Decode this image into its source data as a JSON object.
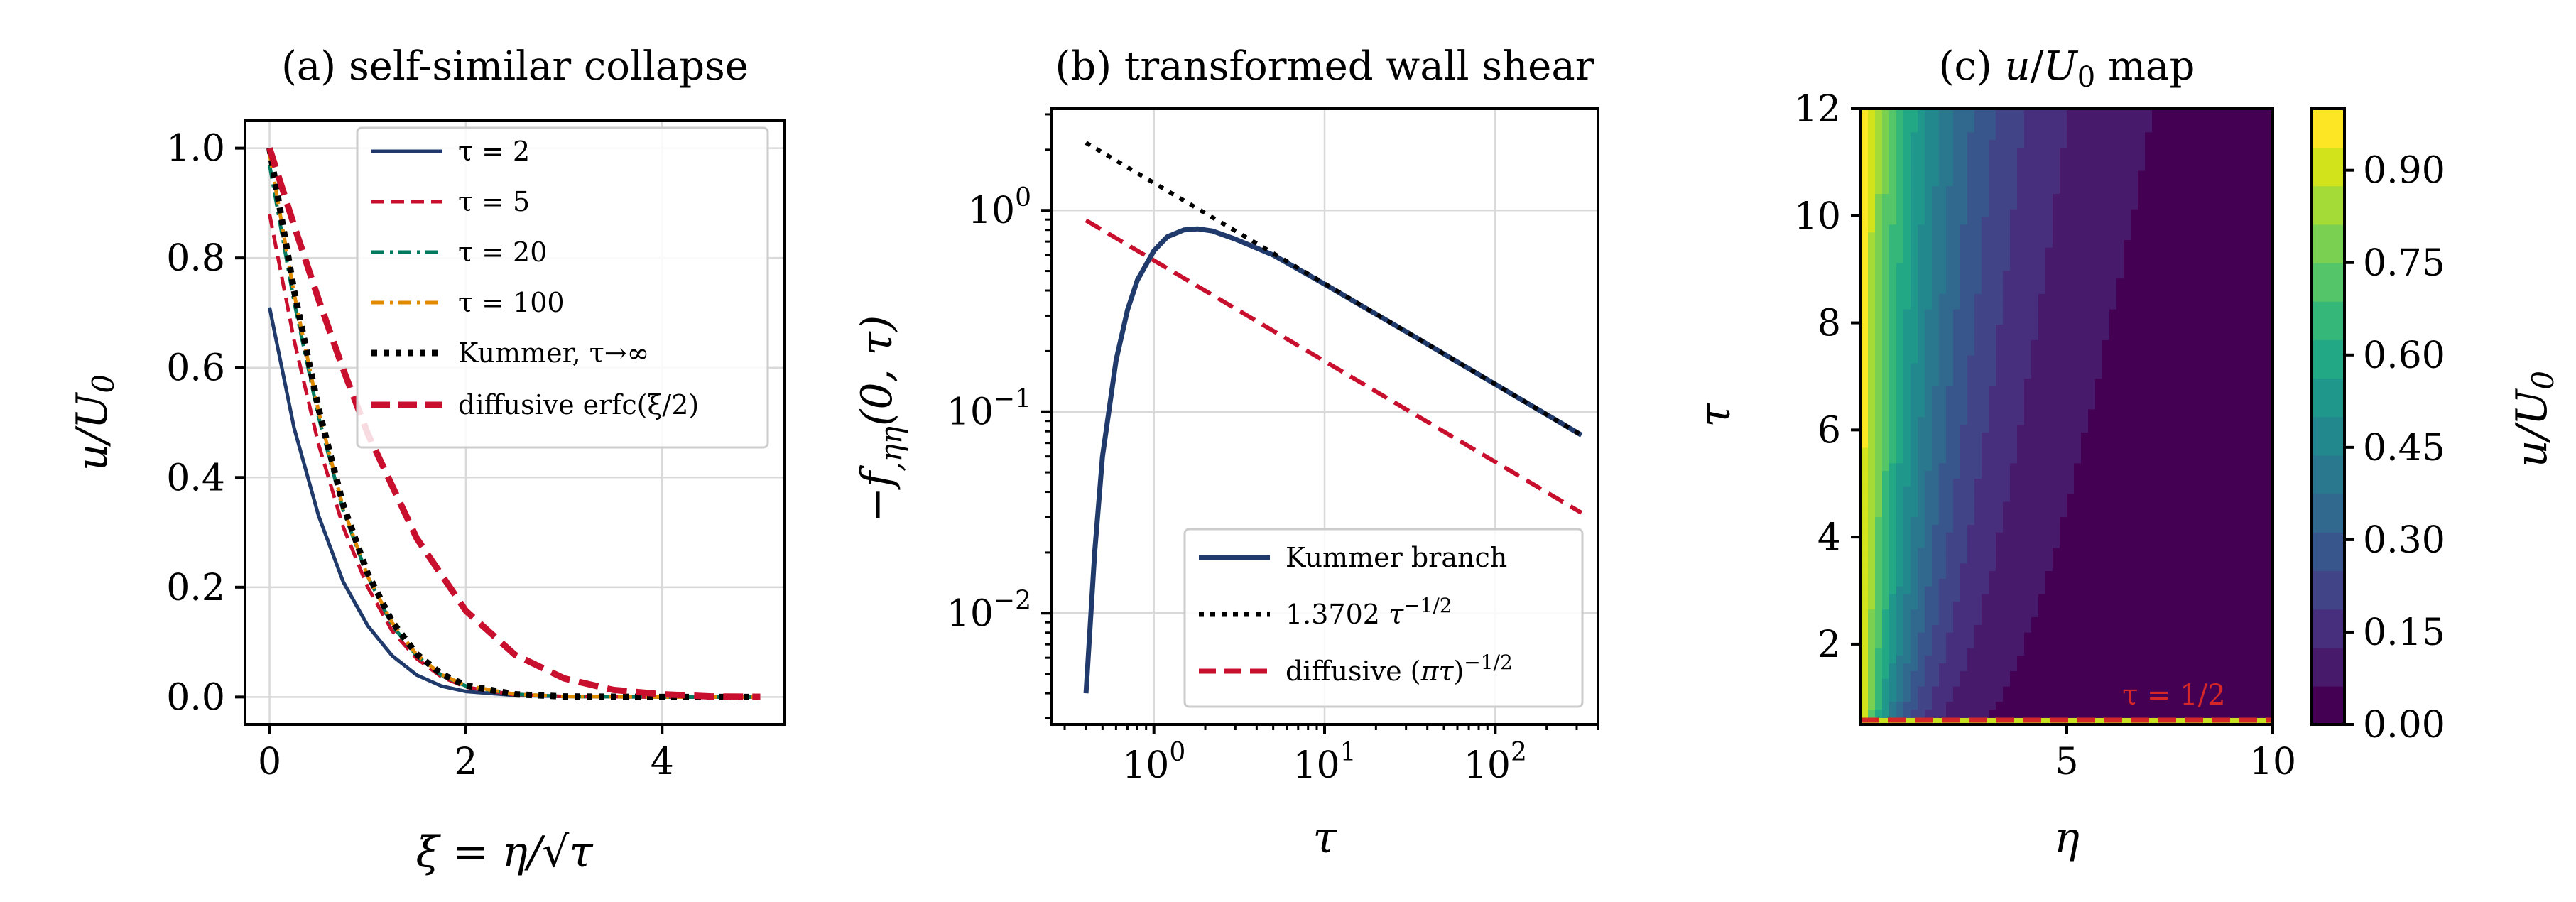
{
  "chart_data": [
    {
      "type": "line",
      "title": "(a) self-similar collapse",
      "xlabel": "ξ = η/√τ",
      "ylabel": "u/U0",
      "xlim": [
        -0.25,
        5.25
      ],
      "ylim": [
        -0.05,
        1.05
      ],
      "xticks": [
        "0",
        "2",
        "4"
      ],
      "yticks": [
        "0.0",
        "0.2",
        "0.4",
        "0.6",
        "0.8",
        "1.0"
      ],
      "grid": true,
      "legend": "top-right",
      "series": [
        {
          "name": "τ = 2",
          "color": "#1f3a6b",
          "style": "solid",
          "x": [
            0,
            0.25,
            0.5,
            0.75,
            1.0,
            1.25,
            1.5,
            1.75,
            2.0,
            2.5,
            3.0,
            4.0,
            5.0
          ],
          "y": [
            0.71,
            0.49,
            0.33,
            0.21,
            0.13,
            0.075,
            0.04,
            0.02,
            0.01,
            0.003,
            0.001,
            0,
            0
          ]
        },
        {
          "name": "τ = 5",
          "color": "#c8102e",
          "style": "dashed",
          "x": [
            0,
            0.25,
            0.5,
            0.75,
            1.0,
            1.25,
            1.5,
            1.75,
            2.0,
            2.5,
            3.0,
            4.0,
            5.0
          ],
          "y": [
            0.88,
            0.65,
            0.46,
            0.31,
            0.2,
            0.12,
            0.07,
            0.037,
            0.018,
            0.004,
            0.001,
            0,
            0
          ]
        },
        {
          "name": "τ = 20",
          "color": "#007a5e",
          "style": "dashdot",
          "x": [
            0,
            0.25,
            0.5,
            0.75,
            1.0,
            1.25,
            1.5,
            1.75,
            2.0,
            2.5,
            3.0,
            4.0,
            5.0
          ],
          "y": [
            0.97,
            0.72,
            0.51,
            0.34,
            0.22,
            0.13,
            0.075,
            0.04,
            0.02,
            0.005,
            0.001,
            0,
            0
          ]
        },
        {
          "name": "τ = 100",
          "color": "#e08a00",
          "style": "dashdot",
          "x": [
            0,
            0.25,
            0.5,
            0.75,
            1.0,
            1.25,
            1.5,
            1.75,
            2.0,
            2.5,
            3.0,
            4.0,
            5.0
          ],
          "y": [
            0.99,
            0.735,
            0.52,
            0.345,
            0.22,
            0.135,
            0.077,
            0.041,
            0.021,
            0.005,
            0.001,
            0,
            0
          ]
        },
        {
          "name": "Kummer, τ→∞",
          "color": "#000000",
          "style": "dotted",
          "x": [
            0,
            0.25,
            0.5,
            0.75,
            1.0,
            1.25,
            1.5,
            1.75,
            2.0,
            2.5,
            3.0,
            4.0,
            5.0
          ],
          "y": [
            1.0,
            0.74,
            0.525,
            0.35,
            0.225,
            0.137,
            0.078,
            0.042,
            0.021,
            0.005,
            0.001,
            0,
            0
          ]
        },
        {
          "name": "diffusive erfc(ξ/2)",
          "color": "#c8102e",
          "style": "dashed-thick",
          "x": [
            0,
            0.25,
            0.5,
            0.75,
            1.0,
            1.5,
            2.0,
            2.5,
            3.0,
            3.5,
            4.0,
            4.5,
            5.0
          ],
          "y": [
            1.0,
            0.859,
            0.724,
            0.597,
            0.48,
            0.289,
            0.157,
            0.077,
            0.034,
            0.013,
            0.005,
            0.001,
            0.0004
          ]
        }
      ]
    },
    {
      "type": "line",
      "title": "(b) transformed wall shear",
      "xlabel": "τ",
      "ylabel": "−f,ηη(0, τ)",
      "xscale": "log",
      "yscale": "log",
      "xlim": [
        0.25,
        400
      ],
      "ylim": [
        0.0028,
        3.2
      ],
      "xticks": [
        {
          "base": "10",
          "exp": "0",
          "value": 1
        },
        {
          "base": "10",
          "exp": "1",
          "value": 10
        },
        {
          "base": "10",
          "exp": "2",
          "value": 100
        }
      ],
      "yticks": [
        {
          "base": "10",
          "exp": "−2",
          "value": 0.01
        },
        {
          "base": "10",
          "exp": "−1",
          "value": 0.1
        },
        {
          "base": "10",
          "exp": "0",
          "value": 1
        }
      ],
      "grid": true,
      "legend": "bottom-right",
      "series": [
        {
          "name": "Kummer branch",
          "color": "#1f3a6b",
          "style": "solid",
          "x": [
            0.4,
            0.45,
            0.5,
            0.6,
            0.7,
            0.8,
            1.0,
            1.2,
            1.5,
            1.8,
            2.2,
            3,
            5,
            10,
            30,
            100,
            320
          ],
          "y": [
            0.004,
            0.02,
            0.06,
            0.18,
            0.32,
            0.45,
            0.63,
            0.74,
            0.8,
            0.81,
            0.79,
            0.72,
            0.6,
            0.43,
            0.25,
            0.137,
            0.0766
          ]
        },
        {
          "name": "1.3702 τ^(−1/2)",
          "color": "#000000",
          "style": "dotted",
          "x": [
            0.4,
            320
          ],
          "y": [
            2.166,
            0.0766
          ]
        },
        {
          "name": "diffusive (πτ)^(−1/2)",
          "color": "#c8102e",
          "style": "dashed",
          "x": [
            0.4,
            320
          ],
          "y": [
            0.892,
            0.0315
          ]
        }
      ],
      "legend_labels": {
        "kummer": "Kummer branch",
        "asym_coef": "1.3702",
        "asym_var": "τ",
        "asym_exp": "−1/2",
        "diff_prefix": "diffusive (",
        "diff_inner": "πτ",
        "diff_exp": "−1/2"
      }
    },
    {
      "type": "heatmap",
      "title": "(c) u/U0 map",
      "xlabel": "η",
      "ylabel": "τ",
      "xlim": [
        0,
        10
      ],
      "ylim": [
        0.5,
        12
      ],
      "xticks": [
        "5",
        "10"
      ],
      "yticks": [
        "2",
        "4",
        "6",
        "8",
        "10",
        "12"
      ],
      "colorbar_label": "u/U0",
      "colorbar_ticks": [
        "0.00",
        "0.15",
        "0.30",
        "0.45",
        "0.60",
        "0.75",
        "0.90"
      ],
      "colorbar_range": [
        0,
        1
      ],
      "annotation": "τ = 1/2",
      "annotation_color": "#d62728"
    }
  ]
}
